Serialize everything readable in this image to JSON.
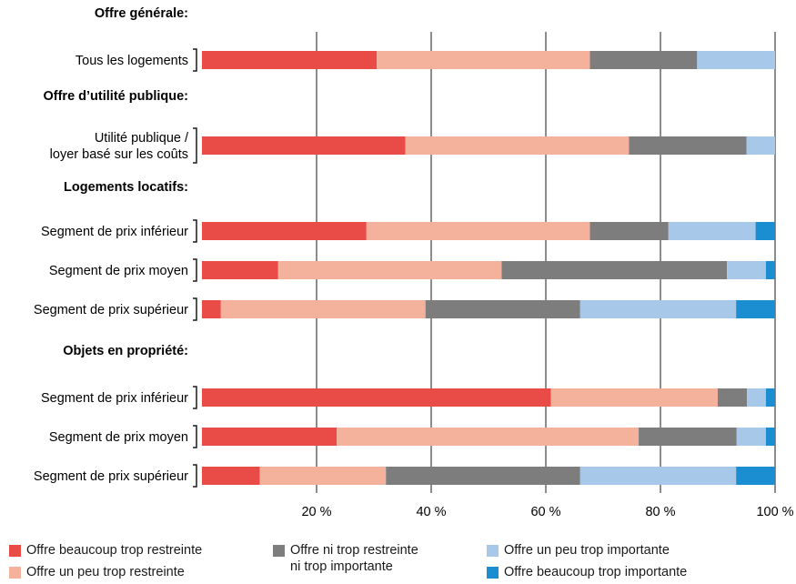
{
  "chart_data": {
    "type": "bar",
    "stacked": true,
    "orientation": "horizontal",
    "xlim": [
      0,
      100
    ],
    "xticks": [
      "20 %",
      "40 %",
      "60 %",
      "80 %",
      "100 %"
    ],
    "grid": true,
    "legend_position": "bottom",
    "groups": [
      {
        "title": "Offre générale:",
        "rows": [
          {
            "label": [
              "Tous les logements"
            ],
            "values": [
              30.5,
              37.2,
              18.7,
              13.6,
              0
            ]
          }
        ]
      },
      {
        "title": "Offre d’utilité publique:",
        "rows": [
          {
            "label": [
              "Utilité publique /",
              "loyer basé sur les coûts"
            ],
            "values": [
              35.5,
              39.0,
              20.5,
              5.0,
              0
            ]
          }
        ]
      },
      {
        "title": "Logements locatifs:",
        "rows": [
          {
            "label": [
              "Segment de prix inférieur"
            ],
            "values": [
              28.7,
              39.0,
              13.7,
              15.2,
              3.4
            ]
          },
          {
            "label": [
              "Segment de prix moyen"
            ],
            "values": [
              13.3,
              39.0,
              39.3,
              6.8,
              1.6
            ]
          },
          {
            "label": [
              "Segment de prix supérieur"
            ],
            "values": [
              3.3,
              35.7,
              27.0,
              27.2,
              6.8
            ]
          }
        ]
      },
      {
        "title": "Objets en propriété:",
        "rows": [
          {
            "label": [
              "Segment de prix inférieur"
            ],
            "values": [
              60.9,
              29.1,
              5.1,
              3.3,
              1.6
            ]
          },
          {
            "label": [
              "Segment de prix moyen"
            ],
            "values": [
              23.5,
              52.7,
              17.1,
              5.1,
              1.6
            ]
          },
          {
            "label": [
              "Segment de prix supérieur"
            ],
            "values": [
              10.1,
              22.0,
              33.9,
              27.2,
              6.8
            ]
          }
        ]
      }
    ],
    "series": [
      {
        "name": "Offre beaucoup trop restreinte",
        "color": "#e94b46"
      },
      {
        "name": "Offre un peu trop restreinte",
        "color": "#f4b19c"
      },
      {
        "name": "Offre ni trop restreinte\nni trop importante",
        "color": "#7d7d7d"
      },
      {
        "name": "Offre un peu trop importante",
        "color": "#a8c8e9"
      },
      {
        "name": "Offre beaucoup trop importante",
        "color": "#1a8ed1"
      }
    ]
  }
}
